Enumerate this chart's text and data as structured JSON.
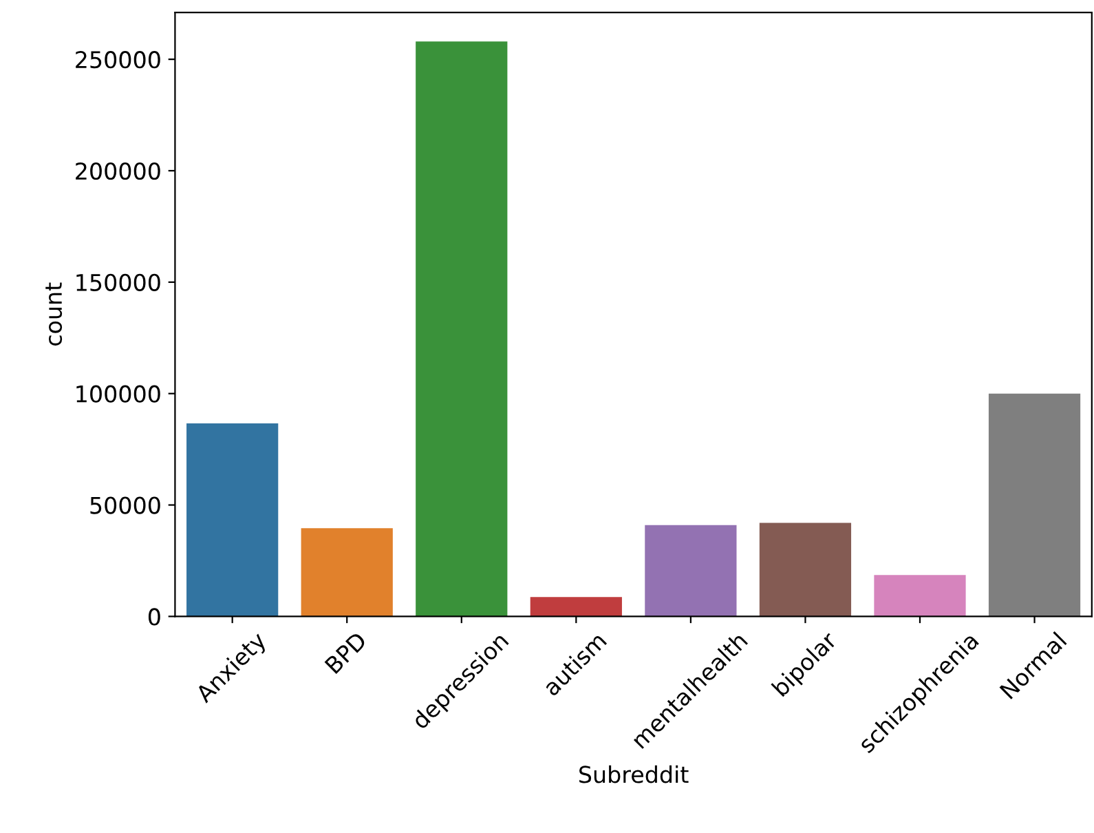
{
  "chart_data": {
    "type": "bar",
    "xlabel": "Subreddit",
    "ylabel": "count",
    "categories": [
      "Anxiety",
      "BPD",
      "depression",
      "autism",
      "mentalhealth",
      "bipolar",
      "schizophrenia",
      "Normal"
    ],
    "values": [
      86600,
      39600,
      258000,
      8700,
      41000,
      42000,
      18600,
      100000
    ],
    "colors": [
      "#3274a1",
      "#e1812c",
      "#3a923a",
      "#c03d3e",
      "#9372b2",
      "#845b53",
      "#d684bd",
      "#7f7f7f"
    ],
    "ylim": [
      0,
      271000
    ],
    "yticks": [
      0,
      50000,
      100000,
      150000,
      200000,
      250000
    ],
    "grid": false,
    "legend": false
  }
}
